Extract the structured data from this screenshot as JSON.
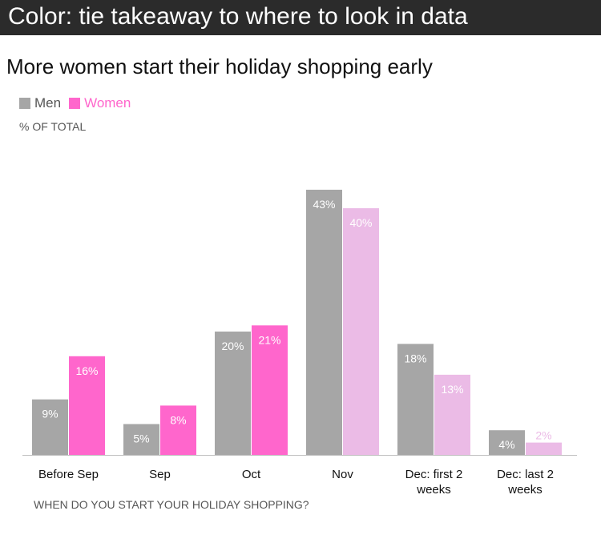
{
  "banner": {
    "text": "Color: tie takeaway to where to look in data"
  },
  "colors": {
    "men": "#a6a6a6",
    "women": "#ff66cc",
    "women_light": "#ebbbe6",
    "banner_bg": "#2b2b2b"
  },
  "chart_data": {
    "type": "bar",
    "title": "More women start their holiday shopping early",
    "ylabel": "% OF TOTAL",
    "xlabel": "WHEN DO YOU START YOUR HOLIDAY SHOPPING?",
    "categories": [
      [
        "Before Sep"
      ],
      [
        "Sep"
      ],
      [
        "Oct"
      ],
      [
        "Nov"
      ],
      [
        "Dec: first 2",
        "weeks"
      ],
      [
        "Dec: last 2",
        "weeks"
      ]
    ],
    "series": [
      {
        "name": "Men",
        "values": [
          9,
          5,
          20,
          43,
          18,
          4
        ],
        "labels": [
          "9%",
          "5%",
          "20%",
          "43%",
          "18%",
          "4%"
        ]
      },
      {
        "name": "Women",
        "values": [
          16,
          8,
          21,
          40,
          13,
          2
        ],
        "labels": [
          "16%",
          "8%",
          "21%",
          "40%",
          "13%",
          "2%"
        ]
      }
    ],
    "highlighted_categories": [
      0,
      1,
      2
    ],
    "legend": "top-left",
    "grid": false
  }
}
